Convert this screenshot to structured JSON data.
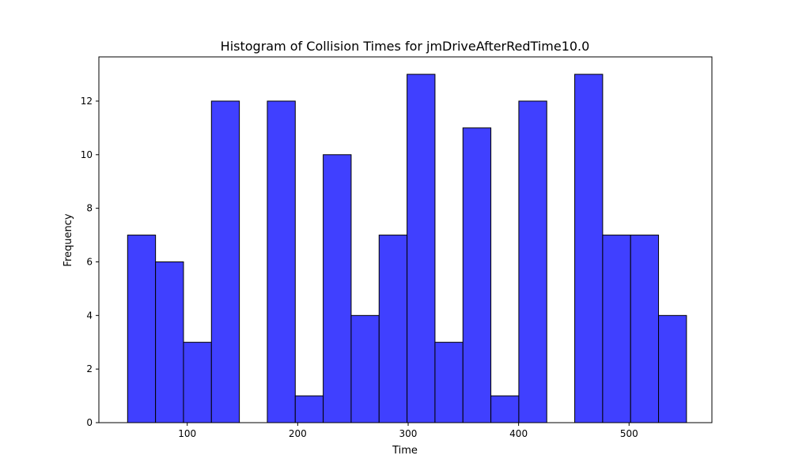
{
  "chart_data": {
    "type": "bar",
    "title": "Histogram of Collision Times for jmDriveAfterRedTime10.0",
    "xlabel": "Time",
    "ylabel": "Frequency",
    "xlim": [
      20,
      575
    ],
    "ylim": [
      0,
      13.65
    ],
    "xticks": [
      100,
      200,
      300,
      400,
      500
    ],
    "yticks": [
      0,
      2,
      4,
      6,
      8,
      10,
      12
    ],
    "grid": false,
    "legend": "none",
    "bar_color": "#4040ff",
    "edge_color": "#000000",
    "bin_edges": [
      46,
      71.3,
      96.6,
      121.9,
      147.2,
      172.5,
      197.8,
      223.1,
      248.4,
      273.7,
      299,
      324.3,
      349.6,
      374.9,
      400.2,
      425.5,
      450.8,
      476.1,
      501.4,
      526.7,
      552
    ],
    "values": [
      7,
      6,
      3,
      12,
      0,
      12,
      1,
      10,
      4,
      7,
      13,
      3,
      11,
      1,
      12,
      0,
      13,
      7,
      7,
      4
    ]
  }
}
